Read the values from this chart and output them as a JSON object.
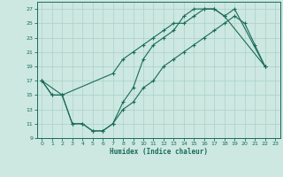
{
  "xlabel": "Humidex (Indice chaleur)",
  "bg_color": "#cce8e0",
  "grid_color": "#aad0c8",
  "line_color": "#1a6b5a",
  "xlim": [
    -0.5,
    23.5
  ],
  "ylim": [
    9,
    28
  ],
  "xticks": [
    0,
    1,
    2,
    3,
    4,
    5,
    6,
    7,
    8,
    9,
    10,
    11,
    12,
    13,
    14,
    15,
    16,
    17,
    18,
    19,
    20,
    21,
    22,
    23
  ],
  "yticks": [
    9,
    11,
    13,
    15,
    17,
    19,
    21,
    23,
    25,
    27
  ],
  "line1": {
    "x": [
      0,
      1,
      2,
      3,
      4,
      5,
      6,
      7,
      8,
      9,
      10,
      11,
      12,
      13,
      14,
      15,
      16,
      17,
      18,
      22
    ],
    "y": [
      17,
      15,
      15,
      11,
      11,
      10,
      10,
      11,
      14,
      16,
      20,
      22,
      23,
      24,
      26,
      27,
      27,
      27,
      26,
      19
    ]
  },
  "line2": {
    "x": [
      0,
      1,
      2,
      7,
      8,
      9,
      10,
      11,
      12,
      13,
      14,
      15,
      16,
      17,
      18,
      19,
      22
    ],
    "y": [
      17,
      15,
      15,
      18,
      20,
      21,
      22,
      23,
      24,
      25,
      25,
      26,
      27,
      27,
      26,
      27,
      19
    ]
  },
  "line3": {
    "x": [
      0,
      2,
      3,
      4,
      5,
      6,
      7,
      8,
      9,
      10,
      11,
      12,
      13,
      14,
      15,
      16,
      17,
      18,
      19,
      20,
      21,
      22
    ],
    "y": [
      17,
      15,
      11,
      11,
      10,
      10,
      11,
      13,
      14,
      16,
      17,
      19,
      20,
      21,
      22,
      23,
      24,
      25,
      26,
      25,
      22,
      19
    ]
  }
}
